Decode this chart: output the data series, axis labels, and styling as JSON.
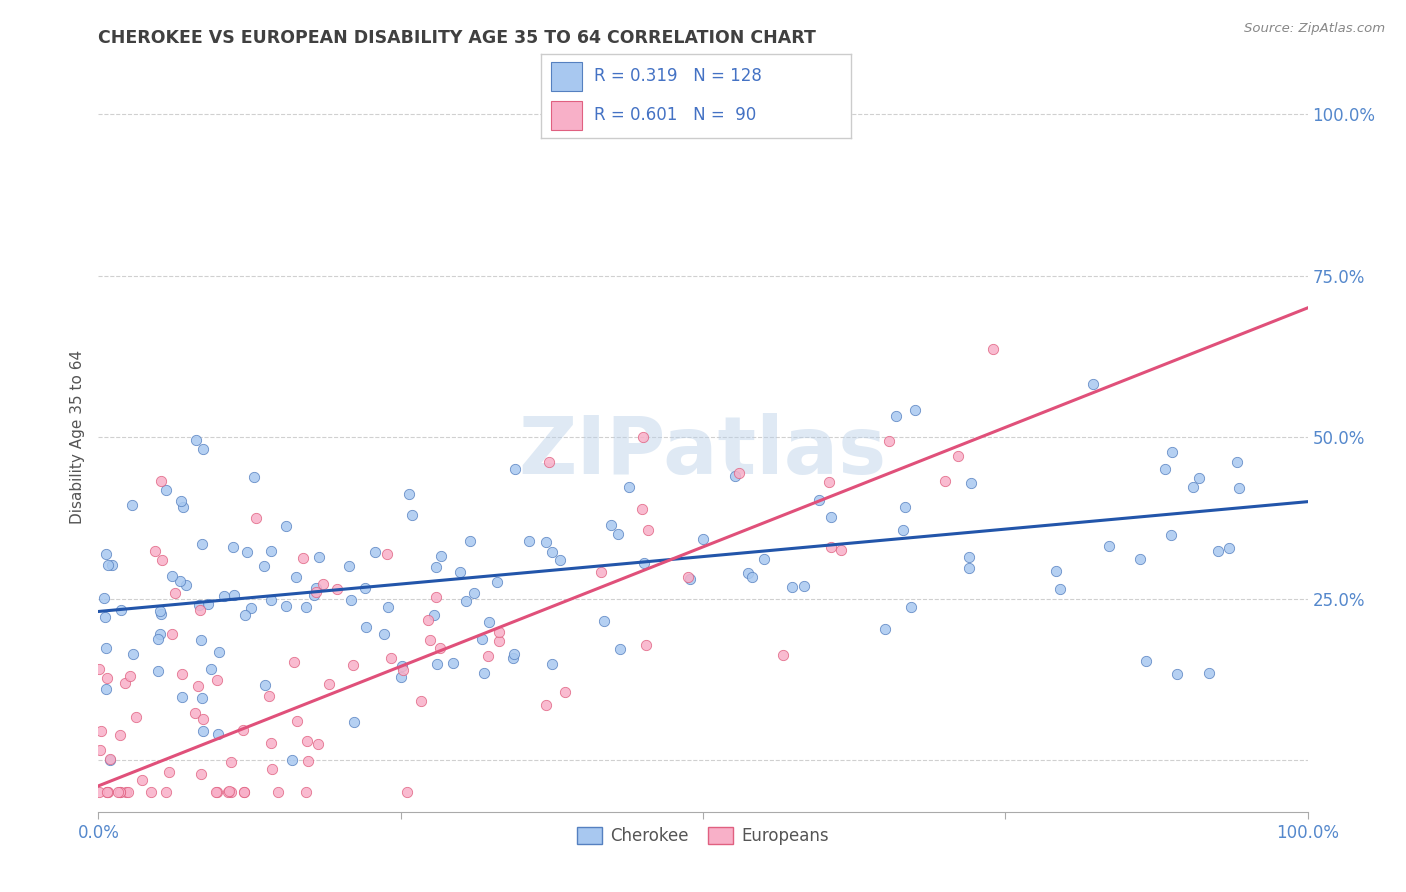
{
  "title": "CHEROKEE VS EUROPEAN DISABILITY AGE 35 TO 64 CORRELATION CHART",
  "source": "Source: ZipAtlas.com",
  "ylabel": "Disability Age 35 to 64",
  "watermark": "ZIPatlas",
  "cherokee_R": 0.319,
  "cherokee_N": 128,
  "european_R": 0.601,
  "european_N": 90,
  "cherokee_fill": "#a8c8f0",
  "cherokee_edge": "#5580c0",
  "cherokee_line": "#2255aa",
  "european_fill": "#f8b0c8",
  "european_edge": "#e06080",
  "european_line": "#e0507a",
  "legend_text_color": "#4472c4",
  "title_color": "#404040",
  "source_color": "#888888",
  "grid_color": "#d0d0d0",
  "background_color": "#ffffff",
  "right_tick_color": "#5588cc",
  "xlim": [
    0.0,
    1.0
  ],
  "ylim": [
    -0.08,
    1.08
  ],
  "x_ticks": [
    0.0,
    0.25,
    0.5,
    0.75,
    1.0
  ],
  "y_ticks": [
    0.0,
    0.25,
    0.5,
    0.75,
    1.0
  ],
  "cherokee_line_y0": 0.23,
  "cherokee_line_y1": 0.4,
  "european_line_y0": -0.04,
  "european_line_y1": 0.7,
  "seed": 7
}
